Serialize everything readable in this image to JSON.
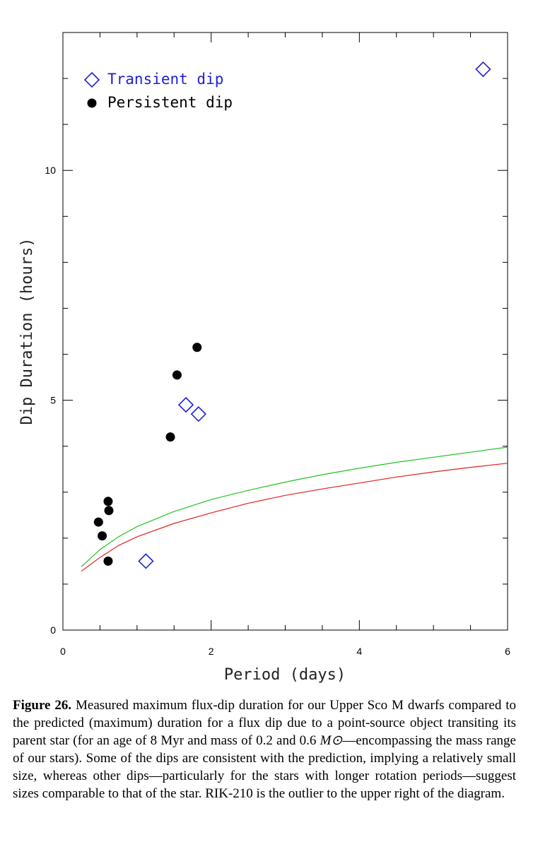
{
  "chart_data": {
    "type": "scatter",
    "xlabel": "Period (days)",
    "ylabel": "Dip Duration (hours)",
    "xlim": [
      0,
      6
    ],
    "ylim": [
      0,
      13
    ],
    "xticks": [
      0,
      2,
      4,
      6
    ],
    "yticks": [
      0,
      5,
      10
    ],
    "legend": {
      "placement": "top-left",
      "entries": [
        {
          "label": "Transient dip",
          "marker": "open-diamond",
          "color": "#1f1fd6"
        },
        {
          "label": "Persistent dip",
          "marker": "filled-circle",
          "color": "#000000"
        }
      ]
    },
    "series": [
      {
        "name": "Transient dip",
        "marker": "open-diamond",
        "color": "#1f1fd6",
        "points": [
          [
            1.12,
            1.5
          ],
          [
            1.66,
            4.9
          ],
          [
            1.83,
            4.7
          ],
          [
            5.67,
            12.2
          ]
        ]
      },
      {
        "name": "Persistent dip",
        "marker": "filled-circle",
        "color": "#000000",
        "points": [
          [
            0.48,
            2.35
          ],
          [
            0.53,
            2.05
          ],
          [
            0.61,
            2.8
          ],
          [
            0.62,
            2.6
          ],
          [
            0.61,
            1.5
          ],
          [
            1.45,
            4.2
          ],
          [
            1.54,
            5.55
          ],
          [
            1.81,
            6.15
          ]
        ]
      }
    ],
    "curves": [
      {
        "color": "#22c322",
        "points": [
          [
            0.25,
            1.38
          ],
          [
            0.5,
            1.75
          ],
          [
            0.75,
            2.03
          ],
          [
            1.0,
            2.25
          ],
          [
            1.5,
            2.58
          ],
          [
            2.0,
            2.84
          ],
          [
            2.5,
            3.04
          ],
          [
            3.0,
            3.22
          ],
          [
            3.5,
            3.38
          ],
          [
            4.0,
            3.52
          ],
          [
            4.5,
            3.65
          ],
          [
            5.0,
            3.76
          ],
          [
            5.5,
            3.87
          ],
          [
            6.0,
            3.98
          ]
        ]
      },
      {
        "color": "#e02020",
        "points": [
          [
            0.25,
            1.28
          ],
          [
            0.5,
            1.58
          ],
          [
            0.75,
            1.84
          ],
          [
            1.0,
            2.03
          ],
          [
            1.5,
            2.32
          ],
          [
            2.0,
            2.55
          ],
          [
            2.5,
            2.76
          ],
          [
            3.0,
            2.93
          ],
          [
            3.5,
            3.07
          ],
          [
            4.0,
            3.2
          ],
          [
            4.5,
            3.33
          ],
          [
            5.0,
            3.44
          ],
          [
            5.5,
            3.54
          ],
          [
            6.0,
            3.63
          ]
        ]
      }
    ]
  },
  "caption": {
    "label": "Figure 26.",
    "text_part1": " Measured maximum flux-dip duration for our Upper Sco M dwarfs compared to the predicted (maximum) duration for a flux dip due to a point-source object transiting its parent star (for an age of 8 Myr and mass of 0.2 and 0.6 ",
    "msun": "M⊙",
    "text_part2": "—encompassing the mass range of our stars). Some of the dips are consistent with the prediction, implying a relatively small size, whereas other dips—particularly for the stars with longer rotation periods—suggest sizes comparable to that of the star. RIK-210 is the outlier to the upper right of the diagram."
  }
}
